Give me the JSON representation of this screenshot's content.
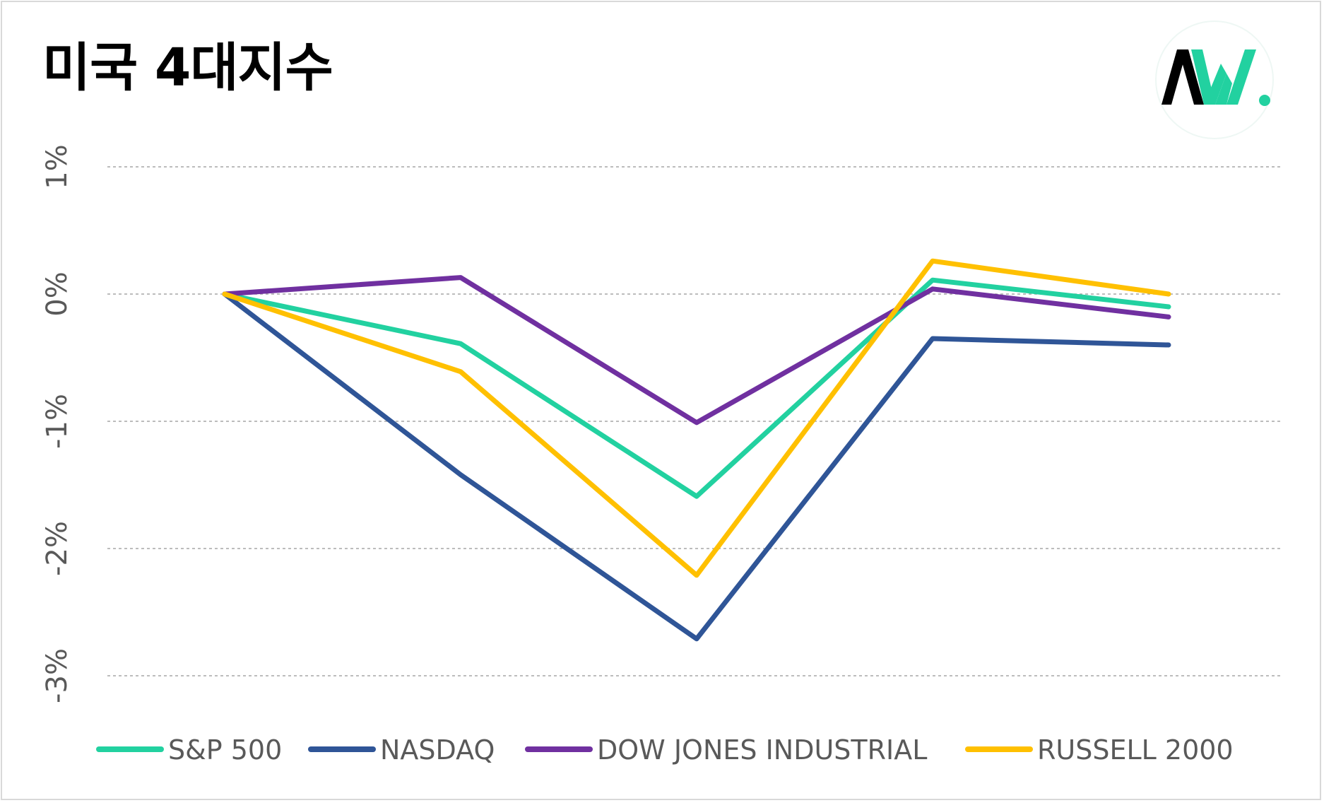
{
  "chart_data": {
    "type": "line",
    "title": "미국 4대지수",
    "categories": [
      "",
      "",
      "",
      "",
      ""
    ],
    "ylim": [
      -3,
      1
    ],
    "yticks": [
      1,
      0,
      -1,
      -2,
      -3
    ],
    "ytick_labels": [
      "1%",
      "0%",
      "-1%",
      "-2%",
      "-3%"
    ],
    "grid": true,
    "legend_position": "bottom",
    "series": [
      {
        "name": "S&P 500",
        "color": "#22d1a0",
        "values": [
          0,
          -0.39,
          -1.59,
          0.11,
          -0.1
        ]
      },
      {
        "name": "NASDAQ",
        "color": "#2f5597",
        "values": [
          0,
          -1.42,
          -2.71,
          -0.35,
          -0.4
        ]
      },
      {
        "name": "DOW JONES INDUSTRIAL",
        "color": "#7030a0",
        "values": [
          0,
          0.13,
          -1.01,
          0.04,
          -0.18
        ]
      },
      {
        "name": "RUSSELL 2000",
        "color": "#ffc000",
        "values": [
          0,
          -0.61,
          -2.21,
          0.26,
          0.0
        ]
      }
    ]
  },
  "logo": {
    "text": "AW.",
    "icon": "aw-logo-icon",
    "accent": "#22d1a0"
  }
}
